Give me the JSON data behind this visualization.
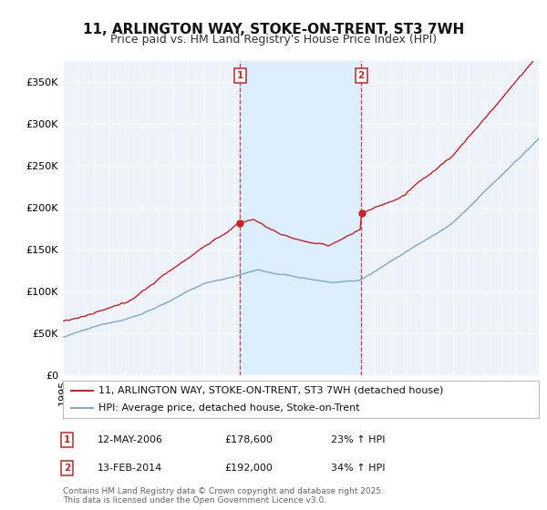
{
  "title": "11, ARLINGTON WAY, STOKE-ON-TRENT, ST3 7WH",
  "subtitle": "Price paid vs. HM Land Registry's House Price Index (HPI)",
  "ylabel_ticks": [
    "£0",
    "£50K",
    "£100K",
    "£150K",
    "£200K",
    "£250K",
    "£300K",
    "£350K"
  ],
  "ytick_values": [
    0,
    50000,
    100000,
    150000,
    200000,
    250000,
    300000,
    350000
  ],
  "ylim": [
    0,
    375000
  ],
  "xlim_start": 1995.0,
  "xlim_end": 2025.5,
  "marker1_x": 2006.36,
  "marker1_y": 178600,
  "marker1_label": "1",
  "marker1_price": "£178,600",
  "marker1_date": "12-MAY-2006",
  "marker1_hpi": "23% ↑ HPI",
  "marker2_x": 2014.12,
  "marker2_y": 192000,
  "marker2_label": "2",
  "marker2_price": "£192,000",
  "marker2_date": "13-FEB-2014",
  "marker2_hpi": "34% ↑ HPI",
  "hpi_line_color": "#7ba7d4",
  "price_line_color": "#cc2222",
  "marker_line_color": "#cc2222",
  "shade_color": "#ddeeff",
  "background_color": "#ffffff",
  "plot_bg_color": "#eef2fb",
  "grid_color": "#ffffff",
  "legend_line1": "11, ARLINGTON WAY, STOKE-ON-TRENT, ST3 7WH (detached house)",
  "legend_line2": "HPI: Average price, detached house, Stoke-on-Trent",
  "footnote": "Contains HM Land Registry data © Crown copyright and database right 2025.\nThis data is licensed under the Open Government Licence v3.0.",
  "title_fontsize": 11,
  "subtitle_fontsize": 9,
  "tick_fontsize": 8,
  "legend_fontsize": 8,
  "footnote_fontsize": 6.5
}
